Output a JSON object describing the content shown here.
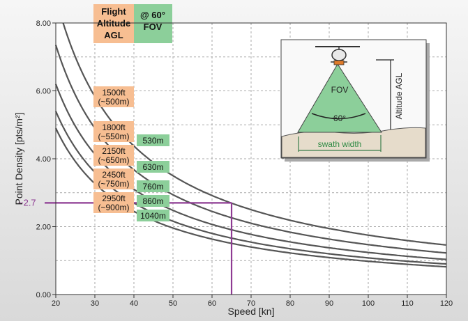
{
  "chart_data": {
    "type": "line",
    "xlabel": "Speed [kn]",
    "ylabel": "Point Density [pts/m²]",
    "xlim": [
      20,
      120
    ],
    "ylim": [
      0,
      8
    ],
    "x_ticks": [
      "20",
      "30",
      "40",
      "50",
      "60",
      "70",
      "80",
      "90",
      "100",
      "110",
      "120"
    ],
    "y_ticks": [
      "0.00",
      "2.00",
      "4.00",
      "6.00",
      "8.00"
    ],
    "grid": true,
    "series": [
      {
        "altitude": "1500ft",
        "altitude_m": "(~500m)",
        "swath": "530m",
        "k": 175
      },
      {
        "altitude": "1800ft",
        "altitude_m": "(~550m)",
        "swath": "630m",
        "k": 147
      },
      {
        "altitude": "2150ft",
        "altitude_m": "(~650m)",
        "swath": "760m",
        "k": 124
      },
      {
        "altitude": "2450ft",
        "altitude_m": "(~750m)",
        "swath": "860m",
        "k": 108
      },
      {
        "altitude": "2950ft",
        "altitude_m": "(~900m)",
        "swath": "1040m",
        "k": 98
      }
    ],
    "header_altitude": [
      "Flight",
      "Altitude",
      "AGL"
    ],
    "header_swath": [
      "@ 60°",
      "FOV"
    ],
    "annotation": {
      "label": "~2.7",
      "x": 65,
      "y": 2.7
    },
    "inset": {
      "fov_label": "FOV",
      "angle_label": "60°",
      "altitude_label": "Altitude AGL",
      "swath_label": "swath width"
    },
    "colors": {
      "curve": "#555555",
      "altitude_box": "#f7be92",
      "swath_box": "#8ccf9a",
      "annotation": "#8e3b93",
      "fov": "#8ccf9a",
      "grid": "#a8a8a8",
      "background": "#ffffff"
    }
  }
}
